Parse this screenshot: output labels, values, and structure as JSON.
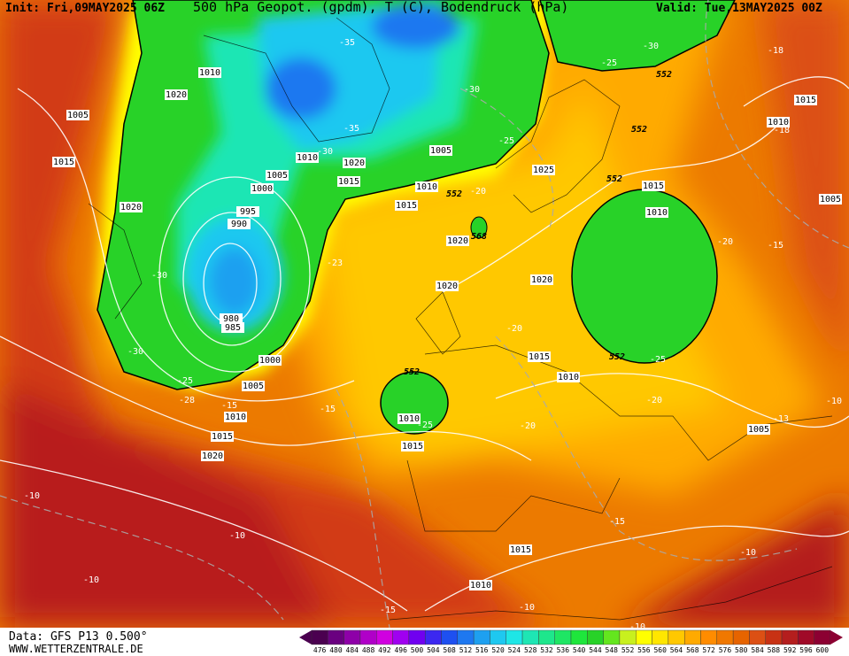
{
  "header": {
    "init": "Init: Fri,09MAY2025 06Z",
    "title": "500 hPa Geopot. (gpdm), T (C), Bodendruck (hPa)",
    "valid": "Valid: Tue,13MAY2025 00Z"
  },
  "footer": {
    "data": "Data: GFS P13 0.500°",
    "site": "WWW.WETTERZENTRALE.DE"
  },
  "scale": {
    "labels": [
      476,
      480,
      484,
      488,
      492,
      496,
      500,
      504,
      508,
      512,
      516,
      520,
      524,
      528,
      532,
      536,
      540,
      544,
      548,
      552,
      556,
      560,
      564,
      568,
      572,
      576,
      580,
      584,
      588,
      592,
      596,
      600
    ],
    "colors": [
      "#4b0050",
      "#6a0080",
      "#8e00a8",
      "#b000c8",
      "#d000e0",
      "#a000f0",
      "#7000f0",
      "#3c28f0",
      "#1e50f0",
      "#1e78f0",
      "#1ea0f0",
      "#1ec8f0",
      "#1ee6e6",
      "#1ee6b4",
      "#1ee68c",
      "#1ee664",
      "#1ee63c",
      "#28d228",
      "#64e61e",
      "#c8f01e",
      "#ffff00",
      "#ffe600",
      "#ffc800",
      "#ffaa00",
      "#ff8c00",
      "#f07800",
      "#e66400",
      "#dc5014",
      "#c83214",
      "#b41e1e",
      "#a00a28",
      "#8c0032"
    ]
  },
  "pressure_labels": [
    "1010",
    "1020",
    "1005",
    "1015",
    "1010",
    "1020",
    "1005",
    "1005",
    "1000",
    "1015",
    "1010",
    "1015",
    "1020",
    "995",
    "990",
    "980",
    "985",
    "1000",
    "1005",
    "1010",
    "1015",
    "1020",
    "1020",
    "1020",
    "1020",
    "1025",
    "1015",
    "1010",
    "1010",
    "1015",
    "1005",
    "1015",
    "1010",
    "1010",
    "1015",
    "1005",
    "1015",
    "1010"
  ],
  "temperature_labels": [
    "-35",
    "-30",
    "-25",
    "-30",
    "-35",
    "-30",
    "-25",
    "-20",
    "-18",
    "-18",
    "-20",
    "-15",
    "-23",
    "-30",
    "-30",
    "-25",
    "-28",
    "-15",
    "-15",
    "-20",
    "-25",
    "-20",
    "-20",
    "-25",
    "-13",
    "-10",
    "-10",
    "-10",
    "-10",
    "-15",
    "-10",
    "-15",
    "-10",
    "-10"
  ],
  "geopotential_labels": [
    "552",
    "552",
    "552",
    "552",
    "568",
    "552",
    "552"
  ]
}
